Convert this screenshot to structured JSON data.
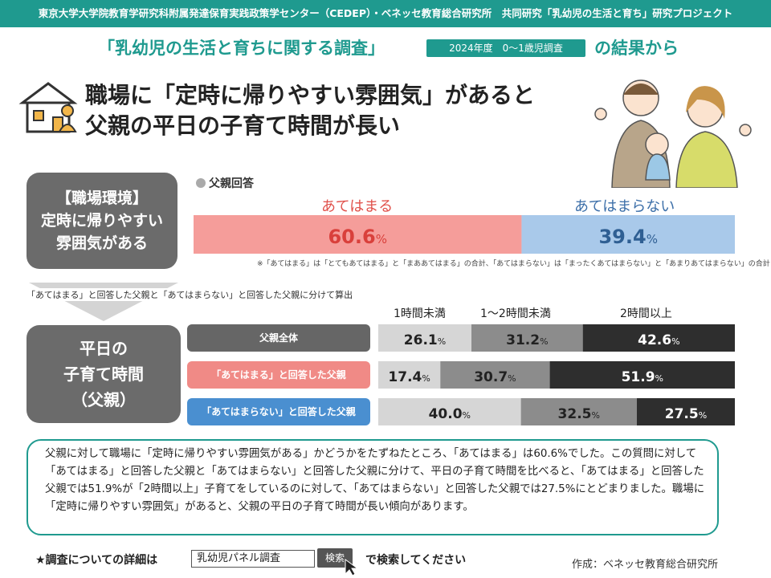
{
  "header": {
    "org_line": "東京大学大学院教育学研究科附属発達保育実践政策学センター（CEDEP）・ベネッセ教育総合研究所　共同研究「乳幼児の生活と育ち」研究プロジェクト",
    "survey_title": "「乳幼児の生活と育ちに関する調査」",
    "survey_badge": "2024年度　0～1歳児調査",
    "survey_suffix": "の結果から",
    "headline_line1": "職場に「定時に帰りやすい雰囲気」があると",
    "headline_line2": "父親の平日の子育て時間が長い"
  },
  "icons": {
    "house": "house-person-icon",
    "family": "family-illustration",
    "arrow": "down-arrow-icon",
    "cursor": "cursor-icon"
  },
  "env_box": {
    "line1": "【職場環境】",
    "line2": "定時に帰りやすい",
    "line3": "雰囲気がある"
  },
  "time_box": {
    "line1": "平日の",
    "line2": "子育て時間",
    "line3": "（父親）"
  },
  "legend": {
    "label": "父親回答"
  },
  "note_split": "「あてはまる」と回答した父親と「あてはまらない」と回答した父親に分けて算出",
  "footnote": "※「あてはまる」は「とてもあてはまる」と「まああてはまる」の合計、「あてはまらない」は「まったくあてはまらない」と「あまりあてはまらない」の合計",
  "chart_data": [
    {
      "type": "bar",
      "orientation": "horizontal-stacked",
      "categories": [
        "あてはまる",
        "あてはまらない"
      ],
      "values": [
        60.6,
        39.4
      ],
      "unit": "%",
      "colors": [
        "#f59d9a",
        "#a9c9ea"
      ],
      "text_colors": [
        "#d9403b",
        "#2f5f93"
      ]
    },
    {
      "type": "bar",
      "orientation": "horizontal-stacked",
      "legend_columns": [
        "1時間未満",
        "1～2時間未満",
        "2時間以上"
      ],
      "unit": "%",
      "colors": [
        "#d6d6d6",
        "#8c8c8c",
        "#2e2e2e"
      ],
      "text_colors": [
        "#222222",
        "#222222",
        "#ffffff"
      ],
      "rows": [
        {
          "label": "父親全体",
          "values": [
            26.1,
            31.2,
            42.6
          ]
        },
        {
          "label": "「あてはまる」と回答した父親",
          "values": [
            17.4,
            30.7,
            51.9
          ]
        },
        {
          "label": "「あてはまらない」と回答した父親",
          "values": [
            40.0,
            32.5,
            27.5
          ]
        }
      ]
    }
  ],
  "summary": "父親に対して職場に「定時に帰りやすい雰囲気がある」かどうかをたずねたところ、「あてはまる」は60.6%でした。この質問に対して「あてはまる」と回答した父親と「あてはまらない」と回答した父親に分けて、平日の子育て時間を比べると、「あてはまる」と回答した父親では51.9%が「2時間以上」子育てをしているのに対して、「あてはまらない」と回答した父親では27.5%にとどまりました。職場に「定時に帰りやすい雰囲気」があると、父親の平日の子育て時間が長い傾向があります。",
  "footer": {
    "search_lead": "★調査についての詳細は",
    "search_value": "乳幼児パネル調査",
    "search_button": "検索",
    "search_trail": "で検索してください",
    "credit": "作成：ベネッセ教育総合研究所"
  }
}
